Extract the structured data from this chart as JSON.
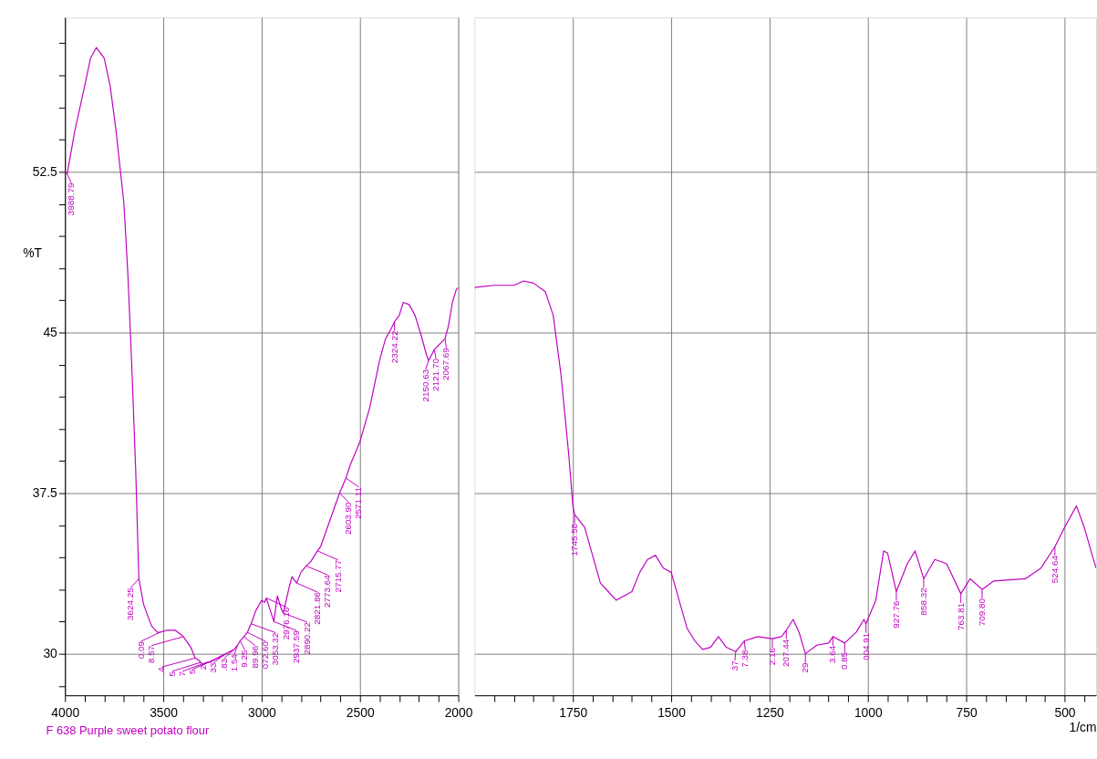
{
  "chart_data": [
    {
      "type": "line",
      "ylabel": "%T",
      "x": [
        4000,
        3988.79,
        3950,
        3900,
        3870,
        3840,
        3800,
        3770,
        3740,
        3700,
        3680,
        3660,
        3640,
        3624.25,
        3600,
        3580,
        3560,
        3530,
        3517,
        3480,
        3440,
        3398,
        3360,
        3338,
        3320,
        3310,
        3300,
        3278,
        3260,
        3246,
        3220,
        3205,
        3182,
        3140,
        3122,
        3109.25,
        3089.96,
        3072.6,
        3053.32,
        3030,
        3000,
        2985,
        2976.16,
        2937.59,
        2920,
        2900,
        2890.22,
        2860,
        2846,
        2821.86,
        2800,
        2773.64,
        2750,
        2715.77,
        2700,
        2650,
        2603.9,
        2571.11,
        2550,
        2500,
        2450,
        2400,
        2370,
        2340,
        2324.22,
        2300,
        2280,
        2250,
        2220,
        2190,
        2160,
        2150.63,
        2121.7,
        2090,
        2067.69,
        2050,
        2030,
        2010,
        2000
      ],
      "series": [
        {
          "name": "F 638 Purple sweet potato flour",
          "color": "#c000c0",
          "values": [
            52.5,
            52.4,
            54.4,
            56.5,
            57.8,
            58.3,
            57.8,
            56.5,
            54.4,
            51.0,
            47.7,
            43.4,
            38.5,
            33.5,
            32.3,
            31.8,
            31.3,
            31.0,
            31.0,
            31.1,
            31.1,
            30.8,
            30.3,
            29.8,
            29.7,
            29.6,
            29.5,
            29.6,
            29.6,
            29.7,
            29.8,
            29.9,
            30.0,
            30.2,
            30.4,
            30.6,
            30.8,
            31.0,
            31.4,
            32.0,
            32.5,
            32.4,
            32.6,
            31.5,
            32.7,
            32.1,
            31.9,
            33.1,
            33.6,
            33.3,
            33.8,
            34.1,
            34.3,
            34.8,
            35.0,
            36.3,
            37.5,
            38.2,
            38.8,
            39.9,
            41.5,
            43.7,
            44.7,
            45.2,
            45.5,
            45.8,
            46.4,
            46.3,
            45.8,
            44.9,
            43.9,
            43.7,
            44.2,
            44.5,
            44.7,
            45.3,
            46.4,
            47.0,
            47.1
          ]
        }
      ],
      "xlim": [
        4000,
        2000
      ],
      "ylim": [
        28.06,
        59.7
      ],
      "xticks": [
        4000,
        {
          "value": 3900,
          "label": null
        },
        {
          "value": 3800,
          "label": null
        },
        {
          "value": 3700,
          "label": null
        },
        {
          "value": 3600,
          "label": null
        },
        3500,
        {
          "value": 3400,
          "label": null
        },
        {
          "value": 3300,
          "label": null
        },
        {
          "value": 3200,
          "label": null
        },
        {
          "value": 3100,
          "label": null
        },
        3000,
        {
          "value": 2900,
          "label": null
        },
        {
          "value": 2800,
          "label": null
        },
        {
          "value": 2700,
          "label": null
        },
        {
          "value": 2600,
          "label": null
        },
        2500,
        {
          "value": 2400,
          "label": null
        },
        {
          "value": 2300,
          "label": null
        },
        {
          "value": 2200,
          "label": null
        },
        {
          "value": 2100,
          "label": null
        },
        2000
      ],
      "yticks": [
        {
          "value": 28.5,
          "label": null
        },
        30,
        {
          "value": 31.5,
          "label": null
        },
        {
          "value": 33,
          "label": null
        },
        {
          "value": 34.5,
          "label": null
        },
        {
          "value": 36,
          "label": null
        },
        37.5,
        {
          "value": 39,
          "label": null
        },
        {
          "value": 40.5,
          "label": null
        },
        {
          "value": 42,
          "label": null
        },
        {
          "value": 43.5,
          "label": null
        },
        45,
        {
          "value": 46.5,
          "label": null
        },
        {
          "value": 48,
          "label": null
        },
        {
          "value": 49.5,
          "label": null
        },
        {
          "value": 51,
          "label": null
        },
        52.5,
        {
          "value": 54,
          "label": null
        },
        {
          "value": 55.5,
          "label": null
        },
        {
          "value": 57,
          "label": null
        },
        {
          "value": 58.5,
          "label": null
        }
      ],
      "grid": true,
      "annotations": [
        {
          "text": "3988.79",
          "x": 3988.79,
          "y": 52.4
        },
        {
          "text": "3624.25",
          "x": 3624.25,
          "y": 33.5
        },
        {
          "text": "0.09",
          "x": 3517,
          "y": 31.0
        },
        {
          "text": "8.57",
          "x": 3398,
          "y": 30.8
        },
        {
          "text": ".4",
          "x": 3338,
          "y": 29.8
        },
        {
          "text": "5",
          "x": 3310,
          "y": 29.6
        },
        {
          "text": "7",
          "x": 3278,
          "y": 29.6
        },
        {
          "text": "5",
          "x": 3246,
          "y": 29.7
        },
        {
          "text": "2",
          "x": 3205,
          "y": 29.9
        },
        {
          "text": "33",
          "x": 3182,
          "y": 30.0
        },
        {
          "text": ".83",
          "x": 3140,
          "y": 30.2
        },
        {
          "text": "1.54",
          "x": 3122,
          "y": 30.4
        },
        {
          "text": "9.25",
          "x": 3109.25,
          "y": 30.6
        },
        {
          "text": "89.96",
          "x": 3089.96,
          "y": 30.8
        },
        {
          "text": "072.60",
          "x": 3072.6,
          "y": 31.0
        },
        {
          "text": "3053.32",
          "x": 3053.32,
          "y": 31.4
        },
        {
          "text": "2976.16",
          "x": 2976.16,
          "y": 32.6
        },
        {
          "text": "2937.59",
          "x": 2937.59,
          "y": 31.5
        },
        {
          "text": "2890.22",
          "x": 2890.22,
          "y": 31.9
        },
        {
          "text": "2821.86",
          "x": 2821.86,
          "y": 33.3
        },
        {
          "text": "2773.64",
          "x": 2773.64,
          "y": 34.1
        },
        {
          "text": "2715.77",
          "x": 2715.77,
          "y": 34.8
        },
        {
          "text": "2603.90",
          "x": 2603.9,
          "y": 37.5
        },
        {
          "text": "2571.11",
          "x": 2571.11,
          "y": 38.2
        },
        {
          "text": "2324.22",
          "x": 2324.22,
          "y": 45.5
        },
        {
          "text": "2150.63",
          "x": 2150.63,
          "y": 43.7
        },
        {
          "text": "2121.70",
          "x": 2121.7,
          "y": 44.2
        },
        {
          "text": "2067.69",
          "x": 2067.69,
          "y": 44.7
        }
      ]
    },
    {
      "type": "line",
      "xlabel": "1/cm",
      "tick_labels": "x",
      "x": [
        2000,
        1950,
        1900,
        1875,
        1850,
        1820,
        1800,
        1780,
        1760,
        1750,
        1745.58,
        1720,
        1700,
        1680,
        1660,
        1640,
        1620,
        1600,
        1580,
        1560,
        1540,
        1520,
        1500,
        1480,
        1460,
        1440,
        1420,
        1400,
        1380,
        1360,
        1336,
        1314,
        1280,
        1243,
        1220,
        1207.44,
        1190,
        1175,
        1159,
        1130,
        1100,
        1089,
        1059,
        1030,
        1010,
        1004.91,
        980,
        960,
        950,
        927.76,
        900,
        880,
        858.32,
        830,
        800,
        763.81,
        740,
        709.8,
        680,
        600,
        560,
        524.64,
        500,
        470,
        450,
        430,
        420
      ],
      "series": [
        {
          "color": "#c000c0",
          "values": [
            47.1,
            47.2,
            47.2,
            47.4,
            47.3,
            46.9,
            45.8,
            43.0,
            39.2,
            36.9,
            36.5,
            35.9,
            34.6,
            33.3,
            32.9,
            32.5,
            32.7,
            32.9,
            33.8,
            34.4,
            34.6,
            34.0,
            33.8,
            32.5,
            31.2,
            30.6,
            30.2,
            30.3,
            30.8,
            30.3,
            30.1,
            30.6,
            30.8,
            30.7,
            30.8,
            31.1,
            31.6,
            31.0,
            30.0,
            30.4,
            30.5,
            30.8,
            30.5,
            31.0,
            31.6,
            31.4,
            32.5,
            34.8,
            34.7,
            32.9,
            34.2,
            34.8,
            33.5,
            34.4,
            34.2,
            32.8,
            33.5,
            33.0,
            33.4,
            33.5,
            34.0,
            35.0,
            35.9,
            36.9,
            35.9,
            34.6,
            34.0
          ]
        }
      ],
      "xlim": [
        2000,
        420
      ],
      "ylim": [
        28.06,
        59.7
      ],
      "xticks": [
        {
          "value": 1950,
          "label": null
        },
        {
          "value": 1900,
          "label": null
        },
        {
          "value": 1850,
          "label": null
        },
        {
          "value": 1800,
          "label": null
        },
        1750,
        {
          "value": 1700,
          "label": null
        },
        {
          "value": 1650,
          "label": null
        },
        {
          "value": 1600,
          "label": null
        },
        {
          "value": 1550,
          "label": null
        },
        1500,
        {
          "value": 1450,
          "label": null
        },
        {
          "value": 1400,
          "label": null
        },
        {
          "value": 1350,
          "label": null
        },
        {
          "value": 1300,
          "label": null
        },
        1250,
        {
          "value": 1200,
          "label": null
        },
        {
          "value": 1150,
          "label": null
        },
        {
          "value": 1100,
          "label": null
        },
        {
          "value": 1050,
          "label": null
        },
        1000,
        {
          "value": 950,
          "label": null
        },
        {
          "value": 900,
          "label": null
        },
        {
          "value": 850,
          "label": null
        },
        {
          "value": 800,
          "label": null
        },
        750,
        {
          "value": 700,
          "label": null
        },
        {
          "value": 650,
          "label": null
        },
        {
          "value": 600,
          "label": null
        },
        {
          "value": 550,
          "label": null
        },
        500,
        {
          "value": 450,
          "label": null
        }
      ],
      "yticks": [
        30,
        37.5,
        45,
        52.5
      ],
      "grid": true,
      "annotations": [
        {
          "text": "1745.58",
          "x": 1745.58,
          "y": 36.5
        },
        {
          "text": "37",
          "x": 1336,
          "y": 30.1
        },
        {
          "text": "7.38",
          "x": 1314,
          "y": 30.6
        },
        {
          "text": "2.16",
          "x": 1243,
          "y": 30.7
        },
        {
          "text": "207.44",
          "x": 1207.44,
          "y": 31.1
        },
        {
          "text": "29",
          "x": 1159,
          "y": 30.0
        },
        {
          "text": "3.64",
          "x": 1089,
          "y": 30.8
        },
        {
          "text": "0.85",
          "x": 1059,
          "y": 30.5
        },
        {
          "text": "004.91",
          "x": 1004.91,
          "y": 31.4
        },
        {
          "text": "927.76",
          "x": 927.76,
          "y": 32.9
        },
        {
          "text": "858.32",
          "x": 858.32,
          "y": 33.5
        },
        {
          "text": "763.81",
          "x": 763.81,
          "y": 32.8
        },
        {
          "text": "709.80",
          "x": 709.8,
          "y": 33.0
        },
        {
          "text": "524.64",
          "x": 524.64,
          "y": 35.0
        }
      ]
    }
  ]
}
